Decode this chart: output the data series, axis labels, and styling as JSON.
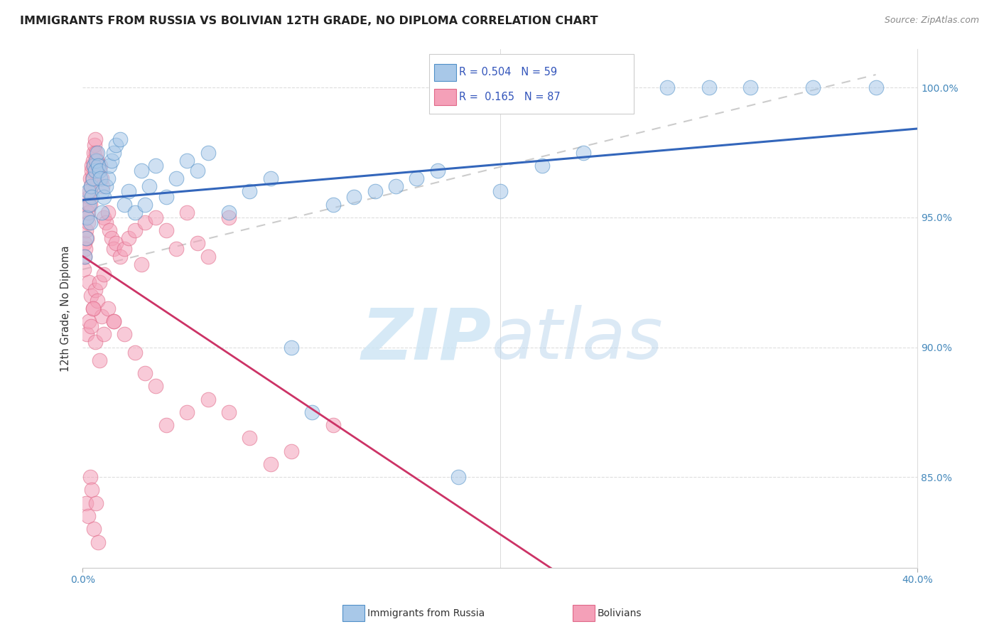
{
  "title": "IMMIGRANTS FROM RUSSIA VS BOLIVIAN 12TH GRADE, NO DIPLOMA CORRELATION CHART",
  "source": "Source: ZipAtlas.com",
  "ylabel": "12th Grade, No Diploma",
  "legend_label_blue": "Immigrants from Russia",
  "legend_label_pink": "Bolivians",
  "blue_color": "#a8c8e8",
  "pink_color": "#f4a0b8",
  "blue_edge_color": "#5090c8",
  "pink_edge_color": "#e06888",
  "blue_line_color": "#3366bb",
  "pink_line_color": "#cc3366",
  "dashed_line_color": "#cccccc",
  "legend_r_n_color": "#3355bb",
  "blue_r": "R = 0.504",
  "blue_n": "N = 59",
  "pink_r": "R =  0.165",
  "pink_n": "N = 87",
  "xlim": [
    0,
    40
  ],
  "ylim": [
    81.5,
    101.5
  ],
  "y_ticks": [
    85,
    90,
    95,
    100
  ],
  "blue_scatter_x": [
    0.1,
    0.15,
    0.2,
    0.25,
    0.3,
    0.35,
    0.4,
    0.45,
    0.5,
    0.55,
    0.6,
    0.65,
    0.7,
    0.75,
    0.8,
    0.85,
    0.9,
    0.95,
    1.0,
    1.1,
    1.2,
    1.3,
    1.4,
    1.5,
    1.6,
    1.8,
    2.0,
    2.2,
    2.5,
    2.8,
    3.0,
    3.2,
    3.5,
    4.0,
    4.5,
    5.0,
    5.5,
    6.0,
    7.0,
    8.0,
    9.0,
    10.0,
    11.0,
    12.0,
    13.0,
    14.0,
    15.0,
    16.0,
    17.0,
    18.0,
    20.0,
    22.0,
    24.0,
    26.0,
    28.0,
    30.0,
    32.0,
    35.0,
    38.0
  ],
  "blue_scatter_y": [
    93.5,
    94.2,
    95.0,
    96.0,
    95.5,
    94.8,
    96.2,
    95.8,
    96.5,
    97.0,
    96.8,
    97.2,
    97.5,
    97.0,
    96.8,
    96.5,
    95.2,
    96.0,
    95.8,
    96.2,
    96.5,
    97.0,
    97.2,
    97.5,
    97.8,
    98.0,
    95.5,
    96.0,
    95.2,
    96.8,
    95.5,
    96.2,
    97.0,
    95.8,
    96.5,
    97.2,
    96.8,
    97.5,
    95.2,
    96.0,
    96.5,
    90.0,
    87.5,
    95.5,
    95.8,
    96.0,
    96.2,
    96.5,
    96.8,
    85.0,
    96.0,
    97.0,
    97.5,
    100.0,
    100.0,
    100.0,
    100.0,
    100.0,
    100.0
  ],
  "pink_scatter_x": [
    0.05,
    0.08,
    0.1,
    0.12,
    0.15,
    0.18,
    0.2,
    0.22,
    0.25,
    0.28,
    0.3,
    0.32,
    0.35,
    0.38,
    0.4,
    0.42,
    0.45,
    0.48,
    0.5,
    0.52,
    0.55,
    0.58,
    0.6,
    0.65,
    0.7,
    0.75,
    0.8,
    0.85,
    0.9,
    0.95,
    1.0,
    1.1,
    1.2,
    1.3,
    1.4,
    1.5,
    1.6,
    1.8,
    2.0,
    2.2,
    2.5,
    2.8,
    3.0,
    3.5,
    4.0,
    4.5,
    5.0,
    5.5,
    6.0,
    7.0,
    0.3,
    0.4,
    0.5,
    0.6,
    0.7,
    0.8,
    0.9,
    1.0,
    1.2,
    1.5,
    0.2,
    0.3,
    0.4,
    0.5,
    0.6,
    0.8,
    1.0,
    1.5,
    2.0,
    2.5,
    3.0,
    3.5,
    4.0,
    5.0,
    6.0,
    7.0,
    8.0,
    9.0,
    10.0,
    12.0,
    0.15,
    0.25,
    0.35,
    0.45,
    0.55,
    0.65,
    0.75
  ],
  "pink_scatter_y": [
    93.0,
    93.5,
    94.0,
    93.8,
    94.5,
    95.0,
    94.2,
    95.5,
    94.8,
    95.2,
    95.8,
    96.0,
    95.5,
    96.5,
    96.2,
    96.8,
    97.0,
    96.5,
    97.2,
    97.5,
    97.0,
    97.8,
    98.0,
    97.5,
    97.2,
    97.0,
    96.8,
    97.0,
    96.5,
    96.2,
    95.0,
    94.8,
    95.2,
    94.5,
    94.2,
    93.8,
    94.0,
    93.5,
    93.8,
    94.2,
    94.5,
    93.2,
    94.8,
    95.0,
    94.5,
    93.8,
    95.2,
    94.0,
    93.5,
    95.0,
    92.5,
    92.0,
    91.5,
    92.2,
    91.8,
    92.5,
    91.2,
    92.8,
    91.5,
    91.0,
    90.5,
    91.0,
    90.8,
    91.5,
    90.2,
    89.5,
    90.5,
    91.0,
    90.5,
    89.8,
    89.0,
    88.5,
    87.0,
    87.5,
    88.0,
    87.5,
    86.5,
    85.5,
    86.0,
    87.0,
    84.0,
    83.5,
    85.0,
    84.5,
    83.0,
    84.0,
    82.5
  ]
}
